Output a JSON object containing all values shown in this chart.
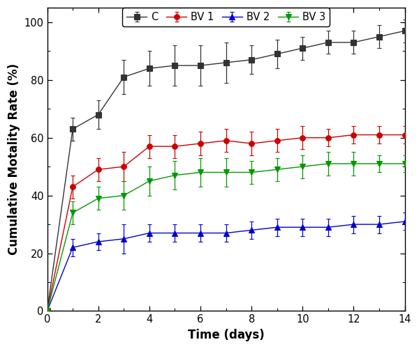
{
  "title": "",
  "xlabel": "Time (days)",
  "ylabel": "Cumulative Motality Rate (%)",
  "xlim": [
    0,
    14
  ],
  "ylim": [
    0,
    105
  ],
  "yticks": [
    0,
    20,
    40,
    60,
    80,
    100
  ],
  "xticks": [
    0,
    2,
    4,
    6,
    8,
    10,
    12,
    14
  ],
  "series": [
    {
      "label": "C",
      "color": "#333333",
      "marker": "s",
      "linestyle": "-",
      "x": [
        0,
        1,
        2,
        3,
        4,
        5,
        6,
        7,
        8,
        9,
        10,
        11,
        12,
        13,
        14
      ],
      "y": [
        0,
        63,
        68,
        81,
        84,
        85,
        85,
        86,
        87,
        89,
        91,
        93,
        93,
        95,
        97
      ],
      "yerr": [
        0,
        4,
        5,
        6,
        6,
        7,
        7,
        7,
        5,
        5,
        4,
        4,
        4,
        4,
        4
      ]
    },
    {
      "label": "BV 1",
      "color": "#cc0000",
      "marker": "o",
      "linestyle": "-",
      "x": [
        0,
        1,
        2,
        3,
        4,
        5,
        6,
        7,
        8,
        9,
        10,
        11,
        12,
        13,
        14
      ],
      "y": [
        0,
        43,
        49,
        50,
        57,
        57,
        58,
        59,
        58,
        59,
        60,
        60,
        61,
        61,
        61
      ],
      "yerr": [
        0,
        4,
        4,
        5,
        4,
        4,
        4,
        4,
        4,
        4,
        4,
        3,
        3,
        3,
        3
      ]
    },
    {
      "label": "BV 2",
      "color": "#0000cc",
      "marker": "^",
      "linestyle": "-",
      "x": [
        0,
        1,
        2,
        3,
        4,
        5,
        6,
        7,
        8,
        9,
        10,
        11,
        12,
        13,
        14
      ],
      "y": [
        0,
        22,
        24,
        25,
        27,
        27,
        27,
        27,
        28,
        29,
        29,
        29,
        30,
        30,
        31
      ],
      "yerr": [
        0,
        3,
        3,
        5,
        3,
        3,
        3,
        3,
        3,
        3,
        3,
        3,
        3,
        3,
        3
      ]
    },
    {
      "label": "BV 3",
      "color": "#009900",
      "marker": "v",
      "linestyle": "-",
      "x": [
        0,
        1,
        2,
        3,
        4,
        5,
        6,
        7,
        8,
        9,
        10,
        11,
        12,
        13,
        14
      ],
      "y": [
        0,
        34,
        39,
        40,
        45,
        47,
        48,
        48,
        48,
        49,
        50,
        51,
        51,
        51,
        51
      ],
      "yerr": [
        0,
        4,
        4,
        5,
        5,
        5,
        5,
        5,
        4,
        4,
        4,
        4,
        4,
        3,
        3
      ]
    }
  ],
  "figsize": [
    6.0,
    5.01
  ],
  "dpi": 100
}
